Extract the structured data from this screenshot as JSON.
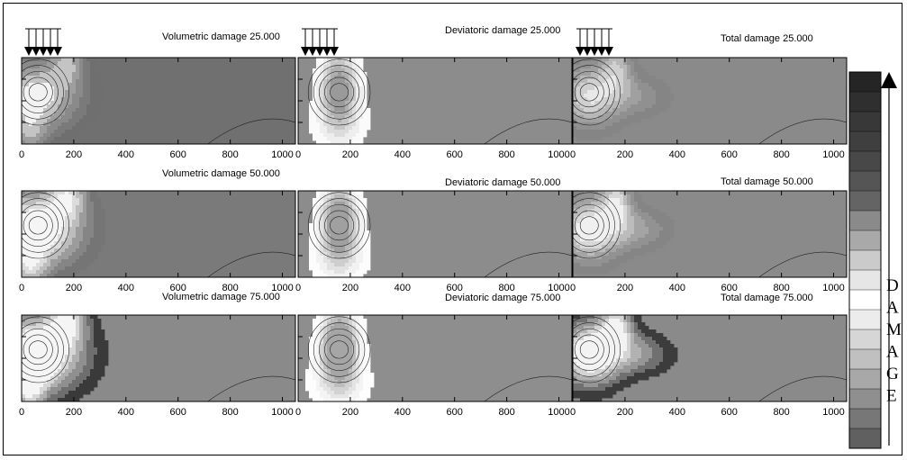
{
  "figure": {
    "damage_word": [
      "D",
      "A",
      "M",
      "A",
      "G",
      "E"
    ]
  },
  "chart_data": [
    {
      "type": "heatmap",
      "title": "Volumetric damage 25.000",
      "x_ticks": [
        "0",
        "200",
        "400",
        "600",
        "800",
        "1000"
      ],
      "xlim": [
        0,
        1050
      ],
      "load_arrows": true,
      "levels": [
        "#f2f2f2",
        "#c4c4c4",
        "#9e9e9e",
        "#8a8a8a",
        "#7a7a7a",
        "#6f6f6f"
      ],
      "base_color": "#707070"
    },
    {
      "type": "heatmap",
      "title": "Deviatoric damage 25.000",
      "x_ticks": [
        "0",
        "200",
        "400",
        "600",
        "800",
        "1000"
      ],
      "xlim": [
        0,
        1050
      ],
      "load_arrows": true,
      "levels": [
        "#9a9a9a",
        "#b0b0b0",
        "#c6c6c6",
        "#dcdcdc",
        "#eeeeee",
        "#fafafa"
      ],
      "base_color": "#8c8c8c"
    },
    {
      "type": "heatmap",
      "title": "Total damage 25.000",
      "x_ticks": [
        "0",
        "200",
        "400",
        "600",
        "800",
        "1000"
      ],
      "xlim": [
        0,
        1050
      ],
      "load_arrows": true,
      "levels": [
        "#e8e8e8",
        "#d0d0d0",
        "#b8b8b8",
        "#a0a0a0",
        "#909090",
        "#858585"
      ],
      "base_color": "#8a8a8a"
    },
    {
      "type": "heatmap",
      "title": "Volumetric damage 50.000",
      "x_ticks": [
        "0",
        "200",
        "400",
        "600",
        "800",
        "1000"
      ],
      "xlim": [
        0,
        1050
      ],
      "load_arrows": false,
      "levels": [
        "#f5f5f5",
        "#dcdcdc",
        "#bdbdbd",
        "#9c9c9c",
        "#858585",
        "#757575"
      ],
      "base_color": "#7a7a7a"
    },
    {
      "type": "heatmap",
      "title": "Deviatoric damage 50.000",
      "x_ticks": [
        "0",
        "200",
        "400",
        "600",
        "800",
        "1000"
      ],
      "xlim": [
        0,
        1050
      ],
      "load_arrows": false,
      "levels": [
        "#a0a0a0",
        "#b8b8b8",
        "#cecece",
        "#e2e2e2",
        "#f2f2f2",
        "#fcfcfc"
      ],
      "base_color": "#8c8c8c"
    },
    {
      "type": "heatmap",
      "title": "Total damage 50.000",
      "x_ticks": [
        "0",
        "200",
        "400",
        "600",
        "800",
        "1000"
      ],
      "xlim": [
        0,
        1050
      ],
      "load_arrows": false,
      "levels": [
        "#f0f0f0",
        "#d8d8d8",
        "#bcbcbc",
        "#a4a4a4",
        "#929292",
        "#858585"
      ],
      "base_color": "#8a8a8a"
    },
    {
      "type": "heatmap",
      "title": "Volumetric damage 75.000",
      "x_ticks": [
        "0",
        "200",
        "400",
        "600",
        "800",
        "1000"
      ],
      "xlim": [
        0,
        1050
      ],
      "load_arrows": false,
      "levels": [
        "#f5f5f5",
        "#d6d6d6",
        "#b0b0b0",
        "#8f8f8f",
        "#6e6e6e",
        "#3a3a3a"
      ],
      "base_color": "#8a8a8a"
    },
    {
      "type": "heatmap",
      "title": "Deviatoric damage 75.000",
      "x_ticks": [
        "0",
        "200",
        "400",
        "600",
        "800",
        "1000"
      ],
      "xlim": [
        0,
        1050
      ],
      "load_arrows": false,
      "levels": [
        "#a6a6a6",
        "#bdbdbd",
        "#d2d2d2",
        "#e4e4e4",
        "#f4f4f4",
        "#fdfdfd"
      ],
      "base_color": "#8e8e8e"
    },
    {
      "type": "heatmap",
      "title": "Total damage 75.000",
      "x_ticks": [
        "0",
        "200",
        "400",
        "600",
        "800",
        "1000"
      ],
      "xlim": [
        0,
        1050
      ],
      "load_arrows": false,
      "levels": [
        "#f3f3f3",
        "#d4d4d4",
        "#b2b2b2",
        "#969696",
        "#707070",
        "#3c3c3c"
      ],
      "base_color": "#8a8a8a"
    }
  ],
  "colorbar": {
    "colors": [
      "#252525",
      "#2f2f2f",
      "#383838",
      "#3f3f3f",
      "#484848",
      "#555555",
      "#646464",
      "#8a8a8a",
      "#a9a9a9",
      "#cbcbcb",
      "#e6e6e6",
      "#ffffff",
      "#ececec",
      "#d6d6d6",
      "#c0c0c0",
      "#a8a8a8",
      "#8f8f8f",
      "#777777",
      "#606060"
    ]
  }
}
